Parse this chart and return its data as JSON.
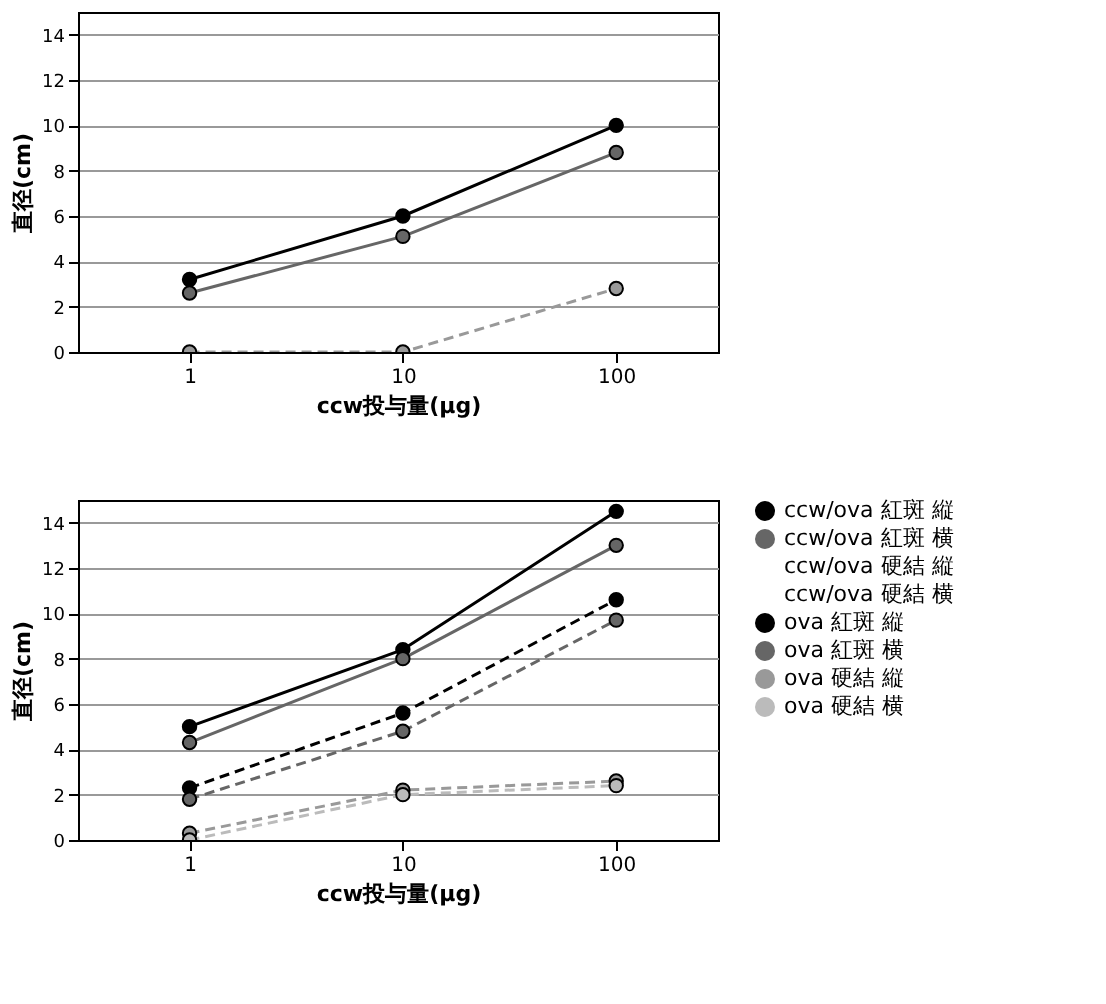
{
  "chart_data": [
    {
      "type": "line",
      "xlabel": "ccw投与量(μg)",
      "ylabel": "直径(cm)",
      "x": [
        1,
        10,
        100
      ],
      "xlim": [
        0.3,
        300
      ],
      "xticks": [
        1,
        10,
        100
      ],
      "log": "x",
      "ylim": [
        0,
        15
      ],
      "yticks": [
        0,
        2,
        4,
        6,
        8,
        10,
        12,
        14
      ],
      "grid": "y",
      "marker": "circle",
      "legend": false,
      "series": [
        {
          "color": "#000000",
          "values": [
            3.2,
            6.0,
            10.0
          ],
          "line_style": "solid"
        },
        {
          "color": "#666666",
          "values": [
            2.6,
            5.1,
            8.8
          ],
          "line_style": "solid"
        },
        {
          "color": "#999999",
          "values": [
            0,
            0,
            2.8
          ],
          "line_style": "dashed"
        }
      ]
    },
    {
      "type": "line",
      "xlabel": "ccw投与量(μg)",
      "ylabel": "直径(cm)",
      "x": [
        1,
        10,
        100
      ],
      "xlim": [
        0.3,
        300
      ],
      "xticks": [
        1,
        10,
        100
      ],
      "log": "x",
      "ylim": [
        0,
        15
      ],
      "yticks": [
        0,
        2,
        4,
        6,
        8,
        10,
        12,
        14
      ],
      "grid": "y",
      "marker": "circle",
      "legend": "right",
      "series": [
        {
          "name": "ccw/ova 紅斑 縦",
          "color": "#000000",
          "values": [
            5.0,
            8.4,
            14.5
          ],
          "line_style": "solid"
        },
        {
          "name": "ccw/ova 紅斑 横",
          "color": "#666666",
          "values": [
            4.3,
            8.0,
            13.0
          ],
          "line_style": "solid"
        },
        {
          "name": "ccw/ova 硬結 縦",
          "values": [
            null,
            null,
            null
          ],
          "line_style": "solid"
        },
        {
          "name": "ccw/ova 硬結 横",
          "values": [
            null,
            null,
            null
          ],
          "line_style": "solid"
        },
        {
          "name": "ova 紅斑 縦",
          "color": "#000000",
          "values": [
            2.3,
            5.6,
            10.6
          ],
          "line_style": "dashed"
        },
        {
          "name": "ova 紅斑 横",
          "color": "#666666",
          "values": [
            1.8,
            4.8,
            9.7
          ],
          "line_style": "dashed"
        },
        {
          "name": "ova 硬結 縦",
          "color": "#999999",
          "values": [
            0.3,
            2.2,
            2.6
          ],
          "line_style": "dashed"
        },
        {
          "name": "ova 硬結 横",
          "color": "#bbbbbb",
          "values": [
            0,
            2.0,
            2.4
          ],
          "line_style": "dashed"
        }
      ]
    }
  ]
}
